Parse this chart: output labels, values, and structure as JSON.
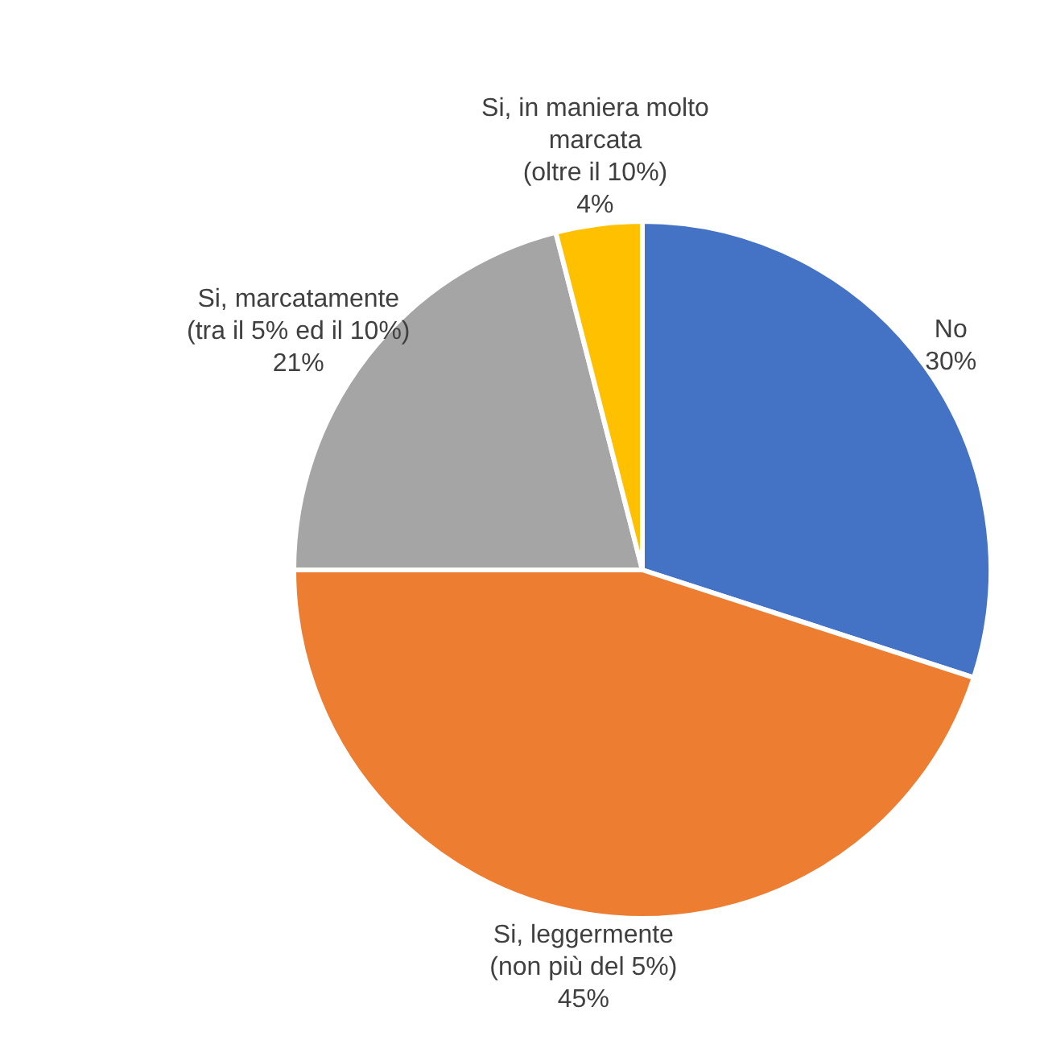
{
  "chart_data": {
    "type": "pie",
    "categories": [
      "No",
      "Si, leggermente (non più del 5%)",
      "Si, marcatamente (tra il 5% ed il 10%)",
      "Si, in maniera molto marcata (oltre il 10%)"
    ],
    "values": [
      30,
      45,
      21,
      4
    ],
    "colors": [
      "#4472c4",
      "#ed7d31",
      "#a5a5a5",
      "#ffc000"
    ],
    "value_labels": [
      "30%",
      "45%",
      "21%",
      "4%"
    ],
    "legend": false
  }
}
